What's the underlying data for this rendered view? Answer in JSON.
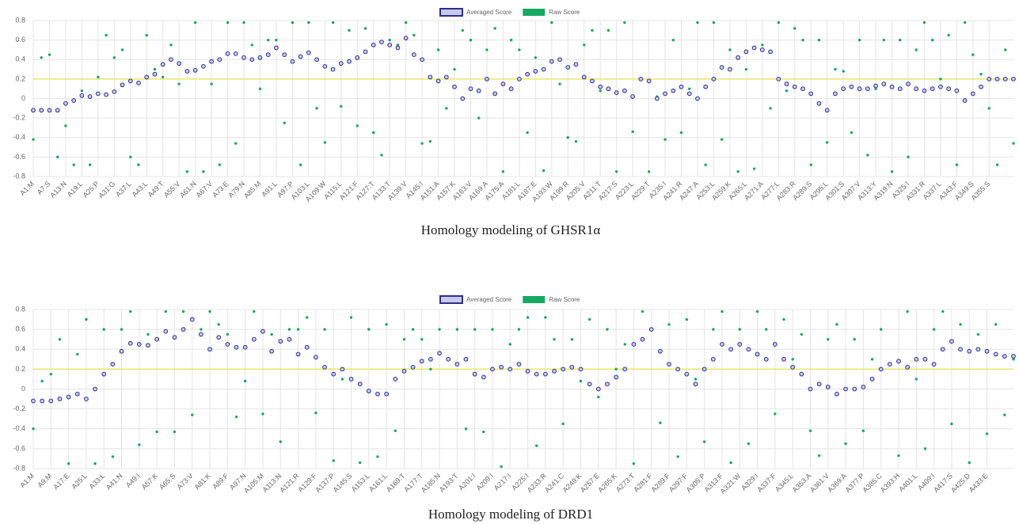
{
  "chart_data": [
    {
      "type": "scatter",
      "caption": "Homology modeling of GHSR1α",
      "categories": [
        "A1:M",
        null,
        "A7:S",
        null,
        "A13:N",
        null,
        "A19:L",
        null,
        "A25:P",
        null,
        "A31:G",
        null,
        "A37:L",
        null,
        "A43:L",
        null,
        "A49:T",
        null,
        "A55:V",
        null,
        "A61:N",
        null,
        "A67:V",
        null,
        "A73:E",
        null,
        "A79:N",
        null,
        "A85:M",
        null,
        "A91:L",
        null,
        "A97:P",
        null,
        "A103:L",
        null,
        "A109:W",
        null,
        "A115:L",
        null,
        "A121:F",
        null,
        "A127:T",
        null,
        "A133:T",
        null,
        "A139:V",
        null,
        "A145:I",
        null,
        "A151:A",
        null,
        "A157:K",
        null,
        "A163:V",
        null,
        "A169:A",
        null,
        "A175:A",
        null,
        "A181:L",
        null,
        "A187:E",
        null,
        "A193:W",
        null,
        "A199:R",
        null,
        "A205:V",
        null,
        "A211:T",
        null,
        "A217:S",
        null,
        "A223:L",
        null,
        "A229:T",
        null,
        "A235:I",
        null,
        "A241:R",
        null,
        "A247:A",
        null,
        "A253:L",
        null,
        "A259:K",
        null,
        "A265:L",
        null,
        "A271:A",
        null,
        "A277:L",
        null,
        "A283:R",
        null,
        "A289:S",
        null,
        "A295:L",
        null,
        "A301:S",
        null,
        "A307:V",
        null,
        "A313:Y",
        null,
        "A319:N",
        null,
        "A325:I",
        null,
        "A331:R",
        null,
        "A337:L",
        null,
        "A343:F",
        null,
        "A349:S",
        null,
        "A355:S",
        null,
        null,
        null
      ],
      "series": [
        {
          "name": "Averaged Score",
          "color": "#2e2e8a",
          "marker_fill": "#c9c9ee",
          "values": [
            -0.12,
            -0.12,
            -0.12,
            -0.12,
            -0.05,
            -0.02,
            0.03,
            0.02,
            0.05,
            0.04,
            0.07,
            0.14,
            0.18,
            0.16,
            0.22,
            0.25,
            0.35,
            0.4,
            0.36,
            0.28,
            0.29,
            0.33,
            0.38,
            0.4,
            0.46,
            0.46,
            0.42,
            0.4,
            0.42,
            0.45,
            0.52,
            0.45,
            0.38,
            0.43,
            0.47,
            0.4,
            0.33,
            0.3,
            0.36,
            0.38,
            0.42,
            0.48,
            0.55,
            0.58,
            0.55,
            0.52,
            0.62,
            0.45,
            0.4,
            0.22,
            0.18,
            0.22,
            0.12,
            0.0,
            0.1,
            0.08,
            0.2,
            0.05,
            0.15,
            0.1,
            0.2,
            0.25,
            0.28,
            0.3,
            0.38,
            0.4,
            0.32,
            0.35,
            0.22,
            0.18,
            0.12,
            0.1,
            0.06,
            0.08,
            0.02,
            0.2,
            0.18,
            0.0,
            0.05,
            0.08,
            0.12,
            0.05,
            0.0,
            0.12,
            0.2,
            0.32,
            0.3,
            0.42,
            0.48,
            0.52,
            0.5,
            0.48,
            0.2,
            0.15,
            0.12,
            0.1,
            0.05,
            -0.05,
            -0.12,
            0.05,
            0.1,
            0.12,
            0.1,
            0.1,
            0.13,
            0.15,
            0.12,
            0.1,
            0.15,
            0.1,
            0.08,
            0.1,
            0.12,
            0.1,
            0.08,
            -0.02,
            0.05,
            0.12,
            0.2,
            0.2,
            0.2,
            0.2
          ]
        },
        {
          "name": "Raw Score",
          "color": "#17a862",
          "values": [
            -0.42,
            0.42,
            0.45,
            -0.6,
            -0.28,
            -0.68,
            0.08,
            -0.68,
            0.22,
            0.65,
            0.42,
            0.5,
            -0.6,
            -0.68,
            0.65,
            0.3,
            0.22,
            0.55,
            0.15,
            -0.75,
            0.78,
            -0.75,
            0.15,
            -0.68,
            0.78,
            -0.46,
            0.78,
            0.55,
            0.1,
            0.6,
            0.6,
            -0.25,
            0.78,
            -0.68,
            0.78,
            -0.1,
            -0.45,
            0.78,
            -0.08,
            0.7,
            -0.28,
            0.72,
            -0.35,
            -0.58,
            0.6,
            0.55,
            0.78,
            0.65,
            -0.46,
            -0.44,
            0.5,
            -0.1,
            0.3,
            0.7,
            0.6,
            -0.2,
            0.5,
            0.72,
            -0.75,
            0.6,
            0.5,
            -0.35,
            0.42,
            -0.74,
            0.78,
            0.15,
            -0.4,
            -0.44,
            0.55,
            0.7,
            0.08,
            0.7,
            -0.75,
            0.78,
            -0.34,
            0.2,
            -0.75,
            0.02,
            -0.42,
            0.6,
            -0.35,
            0.1,
            0.78,
            -0.68,
            0.78,
            -0.42,
            0.5,
            -0.75,
            0.3,
            -0.72,
            0.55,
            -0.1,
            0.78,
            0.08,
            0.72,
            0.6,
            -0.68,
            0.6,
            -0.45,
            0.3,
            0.28,
            -0.35,
            0.6,
            -0.58,
            0.1,
            0.6,
            -0.75,
            0.6,
            -0.6,
            0.5,
            0.78,
            0.6,
            0.2,
            0.65,
            -0.68,
            0.78,
            0.45,
            0.25,
            -0.1,
            -0.68,
            0.5,
            -0.46
          ]
        }
      ],
      "threshold": 0.2,
      "threshold_color": "#e6e66a",
      "ylim": [
        -0.8,
        0.8
      ],
      "yticks": [
        -0.8,
        -0.6,
        -0.4,
        -0.2,
        0,
        0.2,
        0.4,
        0.6,
        0.8
      ],
      "grid": true,
      "legend": "top"
    },
    {
      "type": "scatter",
      "caption": "Homology modeling of DRD1",
      "categories": [
        "A1:M",
        null,
        "A9:M",
        null,
        "A17:E",
        null,
        "A25:L",
        null,
        "A33:L",
        null,
        "A41:N",
        null,
        "A49:I",
        null,
        "A57:K",
        null,
        "A65:S",
        null,
        "A73:V",
        null,
        "A81:K",
        null,
        "A89:F",
        null,
        "A97:N",
        null,
        "A105:M",
        null,
        "A113:N",
        null,
        "A121:R",
        null,
        "A129:F",
        null,
        "A137:P",
        null,
        "A145:S",
        null,
        "A153:L",
        null,
        "A161:L",
        null,
        "A169:T",
        null,
        "A177:T",
        null,
        "A185:N",
        null,
        "A193:T",
        null,
        "A201:I",
        null,
        "A209:I",
        null,
        "A217:I",
        null,
        "A225:I",
        null,
        "A233:R",
        null,
        "A241:C",
        null,
        "A249:K",
        null,
        "A257:E",
        null,
        "A265:K",
        null,
        "A273:T",
        null,
        "A281:F",
        null,
        "A289:F",
        null,
        "A297:F",
        null,
        "A305:P",
        null,
        "A313:F",
        null,
        "A321:W",
        null,
        "A329:I",
        null,
        "A337:F",
        null,
        "A345:L",
        null,
        "A353:A",
        null,
        "A361:V",
        null,
        "A369:A",
        null,
        "A377:P",
        null,
        "A385:C",
        null,
        "A393:H",
        null,
        "A401:L",
        null,
        "A409:I",
        null,
        "A417:S",
        null,
        "A425:D",
        null,
        "A433:E",
        null,
        null,
        null
      ],
      "series": [
        {
          "name": "Averaged Score",
          "color": "#2e2e8a",
          "marker_fill": "#c9c9ee",
          "values": [
            -0.12,
            -0.12,
            -0.12,
            -0.1,
            -0.08,
            -0.05,
            -0.1,
            0.0,
            0.15,
            0.25,
            0.38,
            0.46,
            0.45,
            0.44,
            0.5,
            0.58,
            0.52,
            0.6,
            0.7,
            0.55,
            0.4,
            0.52,
            0.45,
            0.42,
            0.42,
            0.5,
            0.58,
            0.38,
            0.48,
            0.5,
            0.35,
            0.42,
            0.32,
            0.22,
            0.15,
            0.2,
            0.1,
            0.05,
            -0.02,
            -0.05,
            -0.05,
            0.1,
            0.18,
            0.22,
            0.28,
            0.3,
            0.36,
            0.3,
            0.25,
            0.3,
            0.15,
            0.12,
            0.2,
            0.22,
            0.2,
            0.25,
            0.18,
            0.15,
            0.15,
            0.18,
            0.2,
            0.22,
            0.2,
            0.05,
            0.0,
            0.05,
            0.12,
            0.2,
            0.45,
            0.5,
            0.6,
            0.38,
            0.25,
            0.2,
            0.15,
            0.05,
            0.2,
            0.3,
            0.45,
            0.4,
            0.45,
            0.4,
            0.35,
            0.3,
            0.45,
            0.3,
            0.22,
            0.15,
            0.0,
            0.05,
            0.02,
            -0.05,
            0.0,
            0.0,
            0.02,
            0.1,
            0.2,
            0.25,
            0.28,
            0.22,
            0.3,
            0.3,
            0.25,
            0.4,
            0.48,
            0.4,
            0.38,
            0.4,
            0.38,
            0.35,
            0.33,
            0.33
          ]
        },
        {
          "name": "Raw Score",
          "color": "#17a862",
          "values": [
            -0.4,
            0.08,
            0.15,
            0.5,
            -0.75,
            0.35,
            0.7,
            -0.75,
            0.6,
            -0.68,
            0.6,
            0.78,
            -0.56,
            0.55,
            -0.43,
            0.78,
            -0.43,
            0.78,
            -0.26,
            0.6,
            0.78,
            0.65,
            0.55,
            -0.28,
            0.08,
            0.78,
            -0.25,
            0.55,
            -0.53,
            0.6,
            0.6,
            0.72,
            -0.24,
            0.6,
            -0.72,
            0.1,
            0.72,
            -0.74,
            0.6,
            -0.68,
            0.65,
            -0.42,
            0.5,
            0.6,
            0.5,
            0.2,
            0.6,
            0.3,
            0.6,
            -0.4,
            0.6,
            -0.43,
            0.6,
            -0.78,
            0.45,
            0.6,
            0.72,
            -0.57,
            0.72,
            0.5,
            -0.35,
            0.5,
            0.08,
            0.7,
            -0.08,
            0.6,
            0.2,
            0.45,
            -0.75,
            0.78,
            0.6,
            -0.34,
            0.65,
            -0.68,
            0.7,
            0.1,
            -0.53,
            0.6,
            0.78,
            -0.74,
            0.6,
            -0.55,
            0.78,
            0.6,
            -0.25,
            0.7,
            0.3,
            0.55,
            -0.42,
            -0.67,
            0.5,
            0.65,
            -0.55,
            0.5,
            -0.42,
            0.3,
            0.6,
            0.25,
            -0.67,
            0.78,
            0.1,
            -0.6,
            0.6,
            0.78,
            -0.35,
            0.65,
            -0.74,
            0.55,
            -0.45,
            0.65,
            -0.26,
            0.3
          ]
        }
      ],
      "threshold": 0.2,
      "threshold_color": "#e6e66a",
      "ylim": [
        -0.8,
        0.8
      ],
      "yticks": [
        -0.8,
        -0.6,
        -0.4,
        -0.2,
        0,
        0.2,
        0.4,
        0.6,
        0.8
      ],
      "grid": true,
      "legend": "top"
    }
  ]
}
